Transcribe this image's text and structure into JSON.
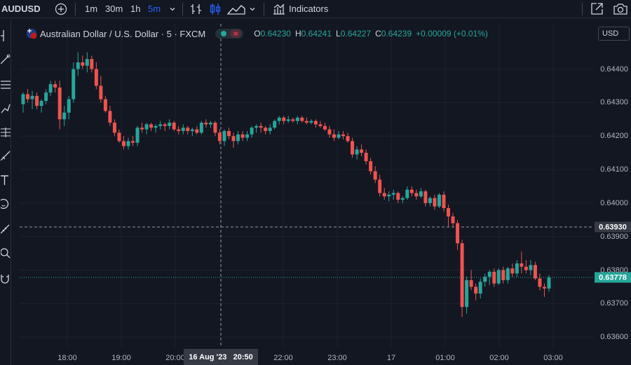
{
  "toolbar": {
    "symbol": "AUDUSD",
    "intervals": [
      {
        "label": "1m",
        "active": false
      },
      {
        "label": "30m",
        "active": false
      },
      {
        "label": "1h",
        "active": false
      },
      {
        "label": "5m",
        "active": true
      }
    ],
    "indicators_label": "Indicators",
    "icons": [
      "add-symbol-icon",
      "chevron-down-icon",
      "bar-chart-icon",
      "candles-icon",
      "area-chart-icon",
      "chevron-down-icon",
      "indicators-icon",
      "fullscreen-icon",
      "camera-icon"
    ]
  },
  "left_tools": [
    "crosshair-icon",
    "trend-line-icon",
    "fib-icon",
    "brush-icon",
    "pattern-icon",
    "prediction-icon",
    "text-icon",
    "emoji-icon",
    "ruler-icon",
    "zoom-icon",
    "magnet-icon"
  ],
  "legend": {
    "title": "Australian Dollar / U.S. Dollar · 5 · FXCM",
    "o_label": "O",
    "o": "0.64230",
    "h_label": "H",
    "h": "0.64241",
    "l_label": "L",
    "l": "0.64227",
    "c_label": "C",
    "c": "0.64239",
    "change": "+0.00009 (+0.01%)"
  },
  "currency": "USD",
  "colors": {
    "up": "#26a69a",
    "down": "#ef5350",
    "background": "#131722",
    "grid": "#1e222d",
    "crosshair_label": "#363a45"
  },
  "crosshair": {
    "price_label": "0.63930",
    "time_label": "16 Aug '23   20:50"
  },
  "last_price": {
    "label": "0.63778"
  },
  "chart_data": {
    "type": "candlestick",
    "y_ticks": [
      "0.64400",
      "0.64300",
      "0.64200",
      "0.64100",
      "0.64000",
      "0.63900",
      "0.63800",
      "0.63700",
      "0.63600"
    ],
    "x_ticks": [
      "18:00",
      "19:00",
      "20:00",
      "22:00",
      "23:00",
      "17",
      "01:00",
      "02:00",
      "03:00"
    ],
    "ylim": [
      0.63569,
      0.64535
    ],
    "grid": true,
    "candles": [
      [
        0.64295,
        0.6433,
        0.6427,
        0.64325
      ],
      [
        0.64325,
        0.6434,
        0.643,
        0.6431
      ],
      [
        0.6431,
        0.64335,
        0.6428,
        0.6432
      ],
      [
        0.6432,
        0.6433,
        0.6428,
        0.6429
      ],
      [
        0.6429,
        0.6431,
        0.6427,
        0.64305
      ],
      [
        0.64305,
        0.6434,
        0.64295,
        0.6433
      ],
      [
        0.6433,
        0.64365,
        0.6432,
        0.64355
      ],
      [
        0.64355,
        0.64365,
        0.6433,
        0.64345
      ],
      [
        0.64345,
        0.64365,
        0.6422,
        0.6425
      ],
      [
        0.6425,
        0.6429,
        0.6423,
        0.6427
      ],
      [
        0.6427,
        0.6432,
        0.6425,
        0.6431
      ],
      [
        0.6431,
        0.6442,
        0.643,
        0.644
      ],
      [
        0.644,
        0.6445,
        0.6438,
        0.6442
      ],
      [
        0.6442,
        0.6444,
        0.644,
        0.6441
      ],
      [
        0.6441,
        0.6445,
        0.6439,
        0.6443
      ],
      [
        0.6443,
        0.6444,
        0.6439,
        0.644
      ],
      [
        0.644,
        0.6442,
        0.6434,
        0.6435
      ],
      [
        0.6435,
        0.6438,
        0.643,
        0.6431
      ],
      [
        0.6431,
        0.6432,
        0.6427,
        0.64275
      ],
      [
        0.64275,
        0.6429,
        0.6423,
        0.6424
      ],
      [
        0.6424,
        0.6425,
        0.642,
        0.6421
      ],
      [
        0.6421,
        0.6422,
        0.6418,
        0.64185
      ],
      [
        0.64185,
        0.642,
        0.6416,
        0.6417
      ],
      [
        0.6417,
        0.64195,
        0.6416,
        0.64185
      ],
      [
        0.64185,
        0.642,
        0.6417,
        0.6418
      ],
      [
        0.6418,
        0.6423,
        0.6417,
        0.64225
      ],
      [
        0.64225,
        0.6424,
        0.6421,
        0.6422
      ],
      [
        0.6422,
        0.6424,
        0.64205,
        0.64235
      ],
      [
        0.64235,
        0.6424,
        0.64215,
        0.64225
      ],
      [
        0.64225,
        0.64235,
        0.6421,
        0.6423
      ],
      [
        0.6423,
        0.64245,
        0.6422,
        0.64235
      ],
      [
        0.64235,
        0.6424,
        0.64215,
        0.6423
      ],
      [
        0.6423,
        0.6425,
        0.6422,
        0.6424
      ],
      [
        0.6424,
        0.64245,
        0.64215,
        0.6422
      ],
      [
        0.6422,
        0.6423,
        0.64205,
        0.64215
      ],
      [
        0.64215,
        0.64235,
        0.64205,
        0.64225
      ],
      [
        0.64225,
        0.6423,
        0.64205,
        0.64215
      ],
      [
        0.64215,
        0.64225,
        0.642,
        0.6422
      ],
      [
        0.6422,
        0.6423,
        0.64205,
        0.6421
      ],
      [
        0.6421,
        0.64245,
        0.64205,
        0.6424
      ],
      [
        0.6424,
        0.6425,
        0.64225,
        0.64235
      ],
      [
        0.64235,
        0.64245,
        0.64225,
        0.6424
      ],
      [
        0.6424,
        0.64245,
        0.642,
        0.6421
      ],
      [
        0.6421,
        0.6422,
        0.64175,
        0.64185
      ],
      [
        0.64185,
        0.6422,
        0.6417,
        0.64215
      ],
      [
        0.64215,
        0.64225,
        0.6419,
        0.642
      ],
      [
        0.642,
        0.6421,
        0.64165,
        0.64185
      ],
      [
        0.64185,
        0.64215,
        0.64175,
        0.64205
      ],
      [
        0.64205,
        0.64215,
        0.64185,
        0.64195
      ],
      [
        0.64195,
        0.64215,
        0.64185,
        0.64205
      ],
      [
        0.64205,
        0.6423,
        0.64195,
        0.64225
      ],
      [
        0.64225,
        0.64235,
        0.6421,
        0.6423
      ],
      [
        0.6423,
        0.6424,
        0.6421,
        0.64225
      ],
      [
        0.64225,
        0.6423,
        0.64205,
        0.64215
      ],
      [
        0.64215,
        0.64235,
        0.64205,
        0.64225
      ],
      [
        0.64225,
        0.6425,
        0.6422,
        0.64245
      ],
      [
        0.64245,
        0.6426,
        0.64235,
        0.64255
      ],
      [
        0.64255,
        0.6426,
        0.64235,
        0.64245
      ],
      [
        0.64245,
        0.6426,
        0.6424,
        0.6425
      ],
      [
        0.6425,
        0.64255,
        0.6424,
        0.64245
      ],
      [
        0.64245,
        0.6426,
        0.64235,
        0.64255
      ],
      [
        0.64255,
        0.6426,
        0.6424,
        0.64245
      ],
      [
        0.64245,
        0.64255,
        0.64235,
        0.6424
      ],
      [
        0.6424,
        0.6425,
        0.64235,
        0.64245
      ],
      [
        0.64245,
        0.6425,
        0.64225,
        0.64235
      ],
      [
        0.64235,
        0.64245,
        0.64225,
        0.6423
      ],
      [
        0.6423,
        0.6424,
        0.64215,
        0.6422
      ],
      [
        0.6422,
        0.6423,
        0.64195,
        0.64205
      ],
      [
        0.64205,
        0.6422,
        0.64185,
        0.64195
      ],
      [
        0.64195,
        0.64215,
        0.6419,
        0.64205
      ],
      [
        0.64205,
        0.64215,
        0.6419,
        0.642
      ],
      [
        0.642,
        0.6421,
        0.6418,
        0.64185
      ],
      [
        0.64185,
        0.64195,
        0.64135,
        0.64145
      ],
      [
        0.64145,
        0.6417,
        0.6413,
        0.6416
      ],
      [
        0.6416,
        0.64175,
        0.6414,
        0.6415
      ],
      [
        0.6415,
        0.6416,
        0.64115,
        0.64125
      ],
      [
        0.64125,
        0.64135,
        0.64085,
        0.64095
      ],
      [
        0.64095,
        0.6411,
        0.6406,
        0.6407
      ],
      [
        0.6407,
        0.64085,
        0.6402,
        0.6403
      ],
      [
        0.6403,
        0.64045,
        0.6401,
        0.6402
      ],
      [
        0.6402,
        0.64035,
        0.64005,
        0.64025
      ],
      [
        0.64025,
        0.6404,
        0.6401,
        0.6403
      ],
      [
        0.6403,
        0.64035,
        0.64,
        0.6401
      ],
      [
        0.6401,
        0.6402,
        0.64,
        0.64015
      ],
      [
        0.64015,
        0.6405,
        0.6401,
        0.6404
      ],
      [
        0.6404,
        0.6405,
        0.6402,
        0.6403
      ],
      [
        0.6403,
        0.6404,
        0.6401,
        0.6402
      ],
      [
        0.6402,
        0.64045,
        0.64015,
        0.64035
      ],
      [
        0.64035,
        0.6404,
        0.6399,
        0.64
      ],
      [
        0.64,
        0.6402,
        0.6399,
        0.64015
      ],
      [
        0.64015,
        0.64025,
        0.6398,
        0.6399
      ],
      [
        0.6399,
        0.6403,
        0.63985,
        0.64025
      ],
      [
        0.64025,
        0.64035,
        0.63975,
        0.63985
      ],
      [
        0.63985,
        0.63995,
        0.6393,
        0.6396
      ],
      [
        0.6396,
        0.6397,
        0.6393,
        0.6394
      ],
      [
        0.6394,
        0.6395,
        0.6386,
        0.6388
      ],
      [
        0.6388,
        0.6389,
        0.6366,
        0.6369
      ],
      [
        0.6369,
        0.6378,
        0.6367,
        0.6377
      ],
      [
        0.6377,
        0.638,
        0.6374,
        0.6375
      ],
      [
        0.6375,
        0.6376,
        0.6371,
        0.6373
      ],
      [
        0.6373,
        0.63775,
        0.63715,
        0.63765
      ],
      [
        0.63765,
        0.6379,
        0.6375,
        0.6378
      ],
      [
        0.6378,
        0.638,
        0.63755,
        0.63795
      ],
      [
        0.63795,
        0.63805,
        0.6375,
        0.6376
      ],
      [
        0.6376,
        0.63805,
        0.63755,
        0.638
      ],
      [
        0.638,
        0.6381,
        0.6376,
        0.6377
      ],
      [
        0.6377,
        0.6381,
        0.6376,
        0.63805
      ],
      [
        0.63805,
        0.6382,
        0.6378,
        0.6379
      ],
      [
        0.6379,
        0.6383,
        0.6378,
        0.6382
      ],
      [
        0.6382,
        0.63855,
        0.6379,
        0.6381
      ],
      [
        0.6381,
        0.6383,
        0.6379,
        0.638
      ],
      [
        0.638,
        0.6383,
        0.63785,
        0.63815
      ],
      [
        0.63815,
        0.63825,
        0.6377,
        0.63775
      ],
      [
        0.63775,
        0.6379,
        0.6374,
        0.6375
      ],
      [
        0.6375,
        0.6376,
        0.6372,
        0.63745
      ],
      [
        0.63745,
        0.63785,
        0.63735,
        0.63778
      ]
    ]
  }
}
